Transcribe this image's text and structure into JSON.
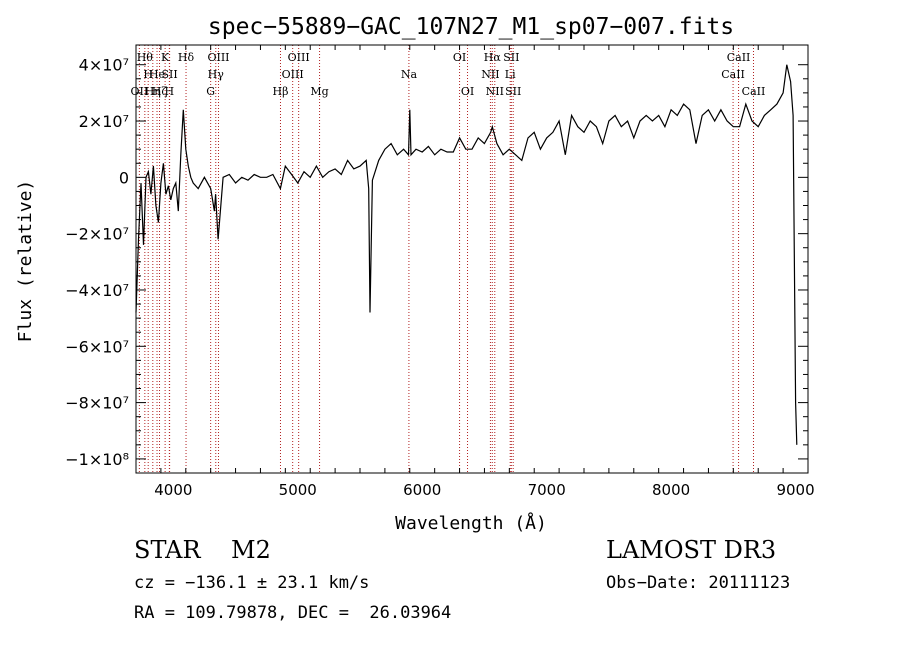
{
  "chart_data": {
    "type": "line",
    "title": "spec−55889−GAC_107N27_M1_sp07−007.fits",
    "xlabel": "Wavelength (Å)",
    "ylabel": "Flux (relative)",
    "xlim": [
      3700,
      9100
    ],
    "ylim": [
      -105000000,
      47000000
    ],
    "xticks": [
      4000,
      5000,
      6000,
      7000,
      8000,
      9000
    ],
    "xtick_labels": [
      "4000",
      "5000",
      "6000",
      "7000",
      "8000",
      "9000"
    ],
    "yticks": [
      40000000,
      20000000,
      0,
      -20000000,
      -40000000,
      -60000000,
      -80000000,
      -100000000
    ],
    "ytick_labels": [
      "4×10⁷",
      "2×10⁷",
      "0",
      "−2×10⁷",
      "−4×10⁷",
      "−6×10⁷",
      "−8×10⁷",
      "−1×10⁸"
    ],
    "grid": false,
    "line_color": "#000000",
    "marker_color": "#b22222",
    "spectrum": {
      "x": [
        3700,
        3720,
        3740,
        3760,
        3780,
        3800,
        3820,
        3840,
        3860,
        3880,
        3900,
        3920,
        3940,
        3960,
        3980,
        4000,
        4020,
        4040,
        4060,
        4080,
        4100,
        4120,
        4140,
        4160,
        4200,
        4250,
        4300,
        4330,
        4340,
        4360,
        4400,
        4450,
        4500,
        4550,
        4600,
        4650,
        4700,
        4750,
        4800,
        4860,
        4900,
        4950,
        5000,
        5050,
        5100,
        5150,
        5200,
        5250,
        5300,
        5350,
        5400,
        5450,
        5500,
        5550,
        5570,
        5580,
        5600,
        5650,
        5700,
        5750,
        5800,
        5850,
        5890,
        5900,
        5910,
        5950,
        6000,
        6050,
        6100,
        6150,
        6200,
        6250,
        6300,
        6350,
        6400,
        6450,
        6500,
        6550,
        6563,
        6600,
        6650,
        6700,
        6750,
        6800,
        6850,
        6900,
        6950,
        7000,
        7050,
        7100,
        7150,
        7200,
        7250,
        7300,
        7350,
        7400,
        7450,
        7500,
        7550,
        7600,
        7650,
        7700,
        7750,
        7800,
        7850,
        7900,
        7950,
        8000,
        8050,
        8100,
        8150,
        8200,
        8250,
        8300,
        8350,
        8400,
        8450,
        8500,
        8550,
        8600,
        8650,
        8700,
        8750,
        8800,
        8850,
        8900,
        8930,
        8960,
        8980,
        9000,
        9010
      ],
      "y": [
        -48000000,
        -22000000,
        -2000000,
        -24000000,
        0,
        2000000,
        -6000000,
        4000000,
        -10000000,
        -16000000,
        -2000000,
        5000000,
        -6000000,
        -3000000,
        -8000000,
        -4000000,
        -2000000,
        -12000000,
        8000000,
        24000000,
        10000000,
        4000000,
        0,
        -2000000,
        -4000000,
        0,
        -4000000,
        -12000000,
        -6000000,
        -22000000,
        0,
        1000000,
        -2000000,
        0,
        -1000000,
        1000000,
        0,
        0,
        1000000,
        -4000000,
        4000000,
        1000000,
        -2000000,
        2000000,
        0,
        4000000,
        0,
        2000000,
        3000000,
        1000000,
        6000000,
        3000000,
        4000000,
        6000000,
        -4000000,
        -48000000,
        -1000000,
        6000000,
        10000000,
        12000000,
        8000000,
        10000000,
        8000000,
        24000000,
        8000000,
        10000000,
        9000000,
        11000000,
        8000000,
        10000000,
        9000000,
        9000000,
        14000000,
        10000000,
        10000000,
        14000000,
        12000000,
        16000000,
        18000000,
        12000000,
        8000000,
        10000000,
        8000000,
        6000000,
        14000000,
        16000000,
        10000000,
        14000000,
        16000000,
        20000000,
        8000000,
        22000000,
        18000000,
        16000000,
        20000000,
        18000000,
        12000000,
        20000000,
        22000000,
        18000000,
        20000000,
        14000000,
        20000000,
        22000000,
        20000000,
        22000000,
        18000000,
        24000000,
        22000000,
        26000000,
        24000000,
        12000000,
        22000000,
        24000000,
        20000000,
        24000000,
        20000000,
        18000000,
        18000000,
        26000000,
        20000000,
        18000000,
        22000000,
        24000000,
        26000000,
        30000000,
        40000000,
        34000000,
        22000000,
        -80000000,
        -95000000
      ]
    },
    "markers": [
      {
        "wl": 3727,
        "labels": [
          "OII"
        ],
        "row": 3
      },
      {
        "wl": 3771,
        "labels": [
          "Hθ"
        ],
        "row": 1
      },
      {
        "wl": 3798,
        "labels": [
          "H"
        ],
        "row": 2
      },
      {
        "wl": 3835,
        "labels": [
          "Hη"
        ],
        "row": 3
      },
      {
        "wl": 3869,
        "labels": [
          "He"
        ],
        "row": 2
      },
      {
        "wl": 3889,
        "labels": [
          "Hζ"
        ],
        "row": 3
      },
      {
        "wl": 3934,
        "labels": [
          "K"
        ],
        "row": 1
      },
      {
        "wl": 3968,
        "labels": [
          "H"
        ],
        "row": 3
      },
      {
        "wl": 3970,
        "labels": [
          "SII"
        ],
        "row": 2
      },
      {
        "wl": 4102,
        "labels": [
          "Hδ"
        ],
        "row": 1
      },
      {
        "wl": 4300,
        "labels": [
          "G"
        ],
        "row": 3
      },
      {
        "wl": 4341,
        "labels": [
          "Hγ"
        ],
        "row": 2
      },
      {
        "wl": 4363,
        "labels": [
          "OIII"
        ],
        "row": 1
      },
      {
        "wl": 4861,
        "labels": [
          "Hβ"
        ],
        "row": 3
      },
      {
        "wl": 4959,
        "labels": [
          "OIII"
        ],
        "row": 2
      },
      {
        "wl": 5007,
        "labels": [
          "OIII"
        ],
        "row": 1
      },
      {
        "wl": 5175,
        "labels": [
          "Mg"
        ],
        "row": 3
      },
      {
        "wl": 5893,
        "labels": [
          "Na"
        ],
        "row": 2
      },
      {
        "wl": 6300,
        "labels": [
          "OI"
        ],
        "row": 1
      },
      {
        "wl": 6364,
        "labels": [
          "OI"
        ],
        "row": 3
      },
      {
        "wl": 6548,
        "labels": [
          "NII"
        ],
        "row": 2
      },
      {
        "wl": 6563,
        "labels": [
          "Hα"
        ],
        "row": 1
      },
      {
        "wl": 6583,
        "labels": [
          "NII"
        ],
        "row": 3
      },
      {
        "wl": 6707,
        "labels": [
          "Li"
        ],
        "row": 2
      },
      {
        "wl": 6716,
        "labels": [
          "SII"
        ],
        "row": 1
      },
      {
        "wl": 6731,
        "labels": [
          "SII"
        ],
        "row": 3
      },
      {
        "wl": 8498,
        "labels": [
          "CaII"
        ],
        "row": 2
      },
      {
        "wl": 8542,
        "labels": [
          "CaII"
        ],
        "row": 1
      },
      {
        "wl": 8662,
        "labels": [
          "CaII"
        ],
        "row": 3
      }
    ]
  },
  "footer": {
    "object_type": "STAR    M2",
    "survey": "LAMOST DR3",
    "cz": "cz = −136.1 ± 23.1 km/s",
    "obs_date": "Obs−Date: 20111123",
    "radec": "RA = 109.79878, DEC =  26.03964"
  }
}
